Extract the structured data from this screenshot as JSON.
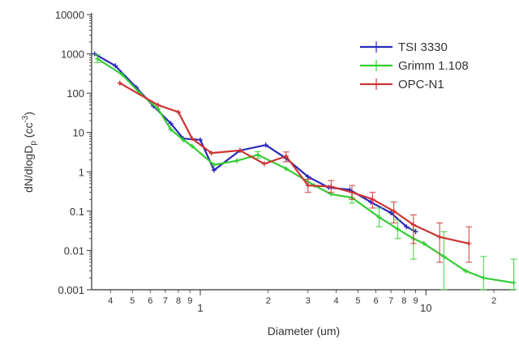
{
  "chart_data": {
    "type": "line",
    "title": "",
    "xlabel": "Diameter (um)",
    "ylabel": "dN/dlogD",
    "ylabel_sub": "p",
    "ylabel_unit_open": " (cc",
    "ylabel_unit_sup": "-3",
    "ylabel_unit_close": ")",
    "x_scale": "log",
    "y_scale": "log",
    "xlim": [
      0.33,
      25
    ],
    "ylim": [
      0.001,
      10000
    ],
    "x_major_ticks": [
      {
        "value": 1,
        "label": "1"
      },
      {
        "value": 10,
        "label": "10"
      }
    ],
    "x_minor_ticks": [
      {
        "value": 0.4,
        "label": "4"
      },
      {
        "value": 0.5,
        "label": "5"
      },
      {
        "value": 0.6,
        "label": "6"
      },
      {
        "value": 0.7,
        "label": "7"
      },
      {
        "value": 0.8,
        "label": "8"
      },
      {
        "value": 0.9,
        "label": "9"
      },
      {
        "value": 2,
        "label": "2"
      },
      {
        "value": 3,
        "label": "3"
      },
      {
        "value": 4,
        "label": "4"
      },
      {
        "value": 5,
        "label": "5"
      },
      {
        "value": 6,
        "label": "6"
      },
      {
        "value": 7,
        "label": "7"
      },
      {
        "value": 8,
        "label": "8"
      },
      {
        "value": 9,
        "label": "9"
      },
      {
        "value": 20,
        "label": "2"
      }
    ],
    "y_ticks": [
      {
        "value": 0.001,
        "label": "0.001"
      },
      {
        "value": 0.01,
        "label": "0.01"
      },
      {
        "value": 0.1,
        "label": "0.1"
      },
      {
        "value": 1,
        "label": "1"
      },
      {
        "value": 10,
        "label": "10"
      },
      {
        "value": 100,
        "label": "100"
      },
      {
        "value": 1000,
        "label": "1000"
      },
      {
        "value": 10000,
        "label": "10000"
      }
    ],
    "grid": false,
    "legend_position": "top-right",
    "series": [
      {
        "name": "TSI 3330",
        "color": "#2a2ab8",
        "points": [
          {
            "x": 0.34,
            "y": 1000
          },
          {
            "x": 0.42,
            "y": 500
          },
          {
            "x": 0.52,
            "y": 140
          },
          {
            "x": 0.62,
            "y": 47
          },
          {
            "x": 0.74,
            "y": 17
          },
          {
            "x": 0.84,
            "y": 7
          },
          {
            "x": 1.0,
            "y": 6.5
          },
          {
            "x": 1.15,
            "y": 1.1
          },
          {
            "x": 1.5,
            "y": 3.5
          },
          {
            "x": 1.95,
            "y": 4.8
          },
          {
            "x": 2.4,
            "y": 2.2
          },
          {
            "x": 3.0,
            "y": 0.75
          },
          {
            "x": 3.7,
            "y": 0.4
          },
          {
            "x": 4.6,
            "y": 0.35
          },
          {
            "x": 5.7,
            "y": 0.17
          },
          {
            "x": 7.0,
            "y": 0.09
          },
          {
            "x": 8.2,
            "y": 0.04
          },
          {
            "x": 9.0,
            "y": 0.03
          }
        ]
      },
      {
        "name": "Grimm 1.108",
        "color": "#33cc33",
        "points": [
          {
            "x": 0.35,
            "y": 750,
            "err_lo": 600,
            "err_hi": 950
          },
          {
            "x": 0.45,
            "y": 300
          },
          {
            "x": 0.54,
            "y": 100
          },
          {
            "x": 0.65,
            "y": 40
          },
          {
            "x": 0.74,
            "y": 12
          },
          {
            "x": 0.84,
            "y": 6.5
          },
          {
            "x": 0.92,
            "y": 4.5
          },
          {
            "x": 1.15,
            "y": 1.5
          },
          {
            "x": 1.45,
            "y": 1.9
          },
          {
            "x": 1.8,
            "y": 2.7,
            "err_lo": 2.2,
            "err_hi": 3.3
          },
          {
            "x": 2.4,
            "y": 1.2
          },
          {
            "x": 3.2,
            "y": 0.45
          },
          {
            "x": 3.8,
            "y": 0.27
          },
          {
            "x": 4.7,
            "y": 0.22,
            "err_lo": 0.16,
            "err_hi": 0.3
          },
          {
            "x": 6.2,
            "y": 0.07,
            "err_lo": 0.04,
            "err_hi": 0.12
          },
          {
            "x": 7.5,
            "y": 0.035,
            "err_lo": 0.02,
            "err_hi": 0.06
          },
          {
            "x": 8.8,
            "y": 0.02,
            "err_lo": 0.006,
            "err_hi": 0.035
          },
          {
            "x": 9.8,
            "y": 0.015
          },
          {
            "x": 12.0,
            "y": 0.007,
            "err_lo": 0.001,
            "err_hi": 0.03
          },
          {
            "x": 15.0,
            "y": 0.003
          },
          {
            "x": 18.0,
            "y": 0.002,
            "err_lo": 0.001,
            "err_hi": 0.007
          },
          {
            "x": 24.5,
            "y": 0.0015,
            "err_lo": 0.001,
            "err_hi": 0.006
          }
        ]
      },
      {
        "name": "OPC-N1",
        "color": "#cc3333",
        "points": [
          {
            "x": 0.44,
            "y": 180
          },
          {
            "x": 0.65,
            "y": 50
          },
          {
            "x": 0.8,
            "y": 33
          },
          {
            "x": 0.92,
            "y": 7
          },
          {
            "x": 1.12,
            "y": 3
          },
          {
            "x": 1.5,
            "y": 3.5
          },
          {
            "x": 1.92,
            "y": 1.6
          },
          {
            "x": 2.4,
            "y": 2.5,
            "err_lo": 1.8,
            "err_hi": 3.2
          },
          {
            "x": 3.0,
            "y": 0.45,
            "err_lo": 0.3,
            "err_hi": 0.65
          },
          {
            "x": 3.8,
            "y": 0.42,
            "err_lo": 0.3,
            "err_hi": 0.6
          },
          {
            "x": 4.7,
            "y": 0.3,
            "err_lo": 0.2,
            "err_hi": 0.45
          },
          {
            "x": 5.8,
            "y": 0.2,
            "err_lo": 0.12,
            "err_hi": 0.3
          },
          {
            "x": 7.2,
            "y": 0.1,
            "err_lo": 0.05,
            "err_hi": 0.17
          },
          {
            "x": 8.8,
            "y": 0.045,
            "err_lo": 0.015,
            "err_hi": 0.08
          },
          {
            "x": 11.5,
            "y": 0.022,
            "err_lo": 0.005,
            "err_hi": 0.05
          },
          {
            "x": 15.5,
            "y": 0.015,
            "err_lo": 0.005,
            "err_hi": 0.04
          }
        ]
      }
    ]
  }
}
